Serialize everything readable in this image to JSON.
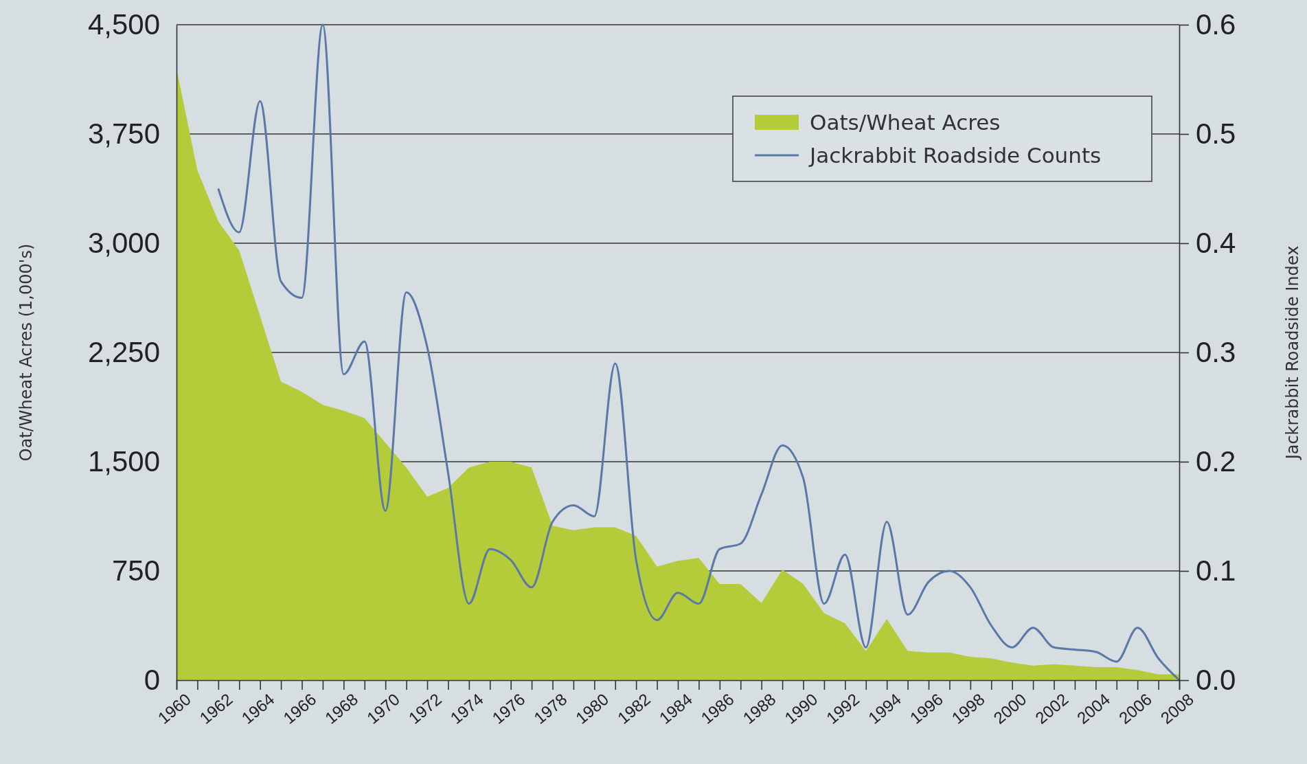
{
  "chart_data": {
    "type": "area",
    "ylabel": "Oat/Wheat Acres (1,000's)",
    "y2label": "Jackrabbit Roadside Index",
    "xlim": [
      1960,
      2008
    ],
    "xticks": [
      1960,
      {
        "value": 1961,
        "label": null
      },
      1962,
      {
        "value": 1963,
        "label": null
      },
      1964,
      {
        "value": 1965,
        "label": null
      },
      1966,
      {
        "value": 1967,
        "label": null
      },
      1968,
      {
        "value": 1969,
        "label": null
      },
      1970,
      {
        "value": 1971,
        "label": null
      },
      1972,
      {
        "value": 1973,
        "label": null
      },
      1974,
      {
        "value": 1975,
        "label": null
      },
      1976,
      {
        "value": 1977,
        "label": null
      },
      1978,
      {
        "value": 1979,
        "label": null
      },
      1980,
      {
        "value": 1981,
        "label": null
      },
      1982,
      {
        "value": 1983,
        "label": null
      },
      1984,
      {
        "value": 1985,
        "label": null
      },
      1986,
      {
        "value": 1987,
        "label": null
      },
      1988,
      {
        "value": 1989,
        "label": null
      },
      1990,
      {
        "value": 1991,
        "label": null
      },
      1992,
      {
        "value": 1993,
        "label": null
      },
      1994,
      {
        "value": 1995,
        "label": null
      },
      1996,
      {
        "value": 1997,
        "label": null
      },
      1998,
      {
        "value": 1999,
        "label": null
      },
      2000,
      {
        "value": 2001,
        "label": null
      },
      2002,
      {
        "value": 2003,
        "label": null
      },
      2004,
      {
        "value": 2005,
        "label": null
      },
      2006,
      {
        "value": 2007,
        "label": null
      },
      2008
    ],
    "ylim": [
      0,
      4500
    ],
    "yticks": [
      0,
      {
        "value": 750,
        "label": "750"
      },
      {
        "value": 1500,
        "label": "1,500"
      },
      {
        "value": 2250,
        "label": "2,250"
      },
      {
        "value": 3000,
        "label": "3,000"
      },
      {
        "value": 3750,
        "label": "3,750"
      },
      {
        "value": 4500,
        "label": "4,500"
      }
    ],
    "y2lim": [
      0,
      0.6
    ],
    "y2ticks": [
      {
        "value": 0,
        "label": "0.0"
      },
      0.1,
      0.2,
      0.3,
      0.4,
      0.5,
      0.6
    ],
    "grid": "y",
    "legend": "top right",
    "series": [
      {
        "name": "Oats/Wheat Acres",
        "color": "#b5cc3a",
        "x": [
          1960,
          1961,
          1962,
          1963,
          1964,
          1965,
          1966,
          1967,
          1968,
          1969,
          1970,
          1971,
          1972,
          1973,
          1974,
          1975,
          1976,
          1977,
          1978,
          1979,
          1980,
          1981,
          1982,
          1983,
          1984,
          1985,
          1986,
          1987,
          1988,
          1989,
          1990,
          1991,
          1992,
          1993,
          1994,
          1995,
          1996,
          1997,
          1998,
          1999,
          2000,
          2001,
          2002,
          2003,
          2004,
          2005,
          2006,
          2007,
          2008
        ],
        "values": [
          4200,
          3500,
          3150,
          2950,
          2500,
          2050,
          1980,
          1890,
          1850,
          1800,
          1630,
          1460,
          1260,
          1320,
          1460,
          1500,
          1500,
          1460,
          1060,
          1030,
          1050,
          1050,
          990,
          780,
          820,
          840,
          660,
          660,
          530,
          760,
          660,
          460,
          390,
          200,
          420,
          200,
          190,
          190,
          160,
          150,
          120,
          100,
          110,
          100,
          90,
          90,
          70,
          40,
          40
        ]
      },
      {
        "name": "Jackrabbit Roadside Counts",
        "type": "line",
        "axis": "y2",
        "color": "#5b78a8",
        "x": [
          1962,
          1963,
          1964,
          1965,
          1966,
          1967,
          1968,
          1969,
          1970,
          1971,
          1972,
          1973,
          1974,
          1975,
          1976,
          1977,
          1978,
          1979,
          1980,
          1981,
          1982,
          1983,
          1984,
          1985,
          1986,
          1987,
          1988,
          1989,
          1990,
          1991,
          1992,
          1993,
          1994,
          1995,
          1996,
          1997,
          1998,
          1999,
          2000,
          2001,
          2002,
          2003,
          2004,
          2005,
          2006,
          2007,
          2008
        ],
        "values": [
          0.45,
          0.41,
          0.53,
          0.365,
          0.35,
          0.6,
          0.28,
          0.31,
          0.155,
          0.355,
          0.305,
          0.19,
          0.07,
          0.12,
          0.11,
          0.085,
          0.145,
          0.16,
          0.15,
          0.29,
          0.11,
          0.055,
          0.08,
          0.07,
          0.12,
          0.125,
          0.17,
          0.215,
          0.185,
          0.07,
          0.115,
          0.03,
          0.145,
          0.06,
          0.09,
          0.1,
          0.085,
          0.05,
          0.03,
          0.048,
          0.03,
          0.028,
          0.026,
          0.017,
          0.048,
          0.02,
          0
        ]
      }
    ]
  }
}
